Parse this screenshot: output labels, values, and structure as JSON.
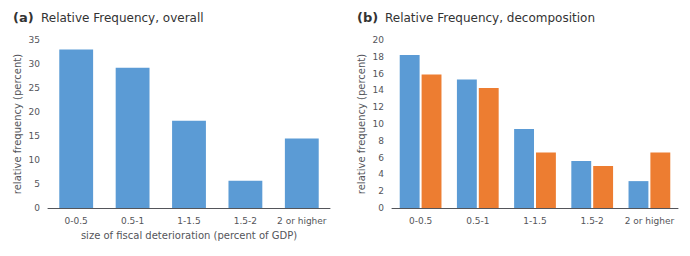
{
  "chart_data": [
    {
      "type": "bar",
      "panel_label": "(a)",
      "title": "Relative Frequency, overall",
      "categories": [
        "0-0.5",
        "0.5-1",
        "1-1.5",
        "1.5-2",
        "2 or higher"
      ],
      "values": [
        33.0,
        29.2,
        18.2,
        5.7,
        14.5
      ],
      "color": "#5B9BD5",
      "ylabel": "relative frequency (percent)",
      "xlabel": "size of fiscal deterioration (percent of GDP)",
      "ylim": [
        0,
        35
      ],
      "yticks": [
        0,
        5,
        10,
        15,
        20,
        25,
        30,
        35
      ],
      "grid": false
    },
    {
      "type": "bar",
      "panel_label": "(b)",
      "title": "Relative Frequency, decomposition",
      "categories": [
        "0-0.5",
        "0.5-1",
        "1-1.5",
        "1.5-2",
        "2 or higher"
      ],
      "series": [
        {
          "color": "#5B9BD5",
          "values": [
            18.2,
            15.3,
            9.4,
            5.6,
            3.2
          ]
        },
        {
          "color": "#ED7D31",
          "values": [
            15.9,
            14.3,
            6.6,
            5.0,
            6.6
          ]
        }
      ],
      "ylabel": "relative frequency (percent)",
      "ylim": [
        0,
        20
      ],
      "yticks": [
        0,
        2,
        4,
        6,
        8,
        10,
        12,
        14,
        16,
        18,
        20
      ],
      "grid": false
    }
  ]
}
